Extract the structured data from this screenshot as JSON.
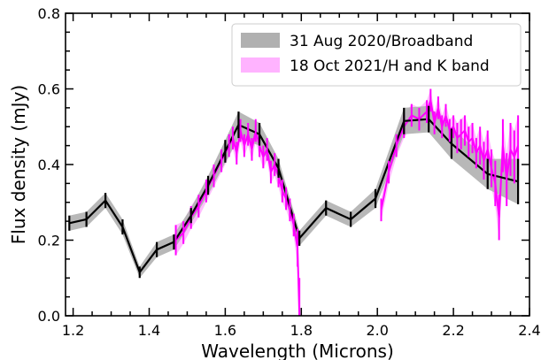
{
  "chart_data": {
    "type": "line",
    "title": "",
    "xlabel": "Wavelength (Microns)",
    "ylabel": "Flux density (mJy)",
    "xlim": [
      1.18,
      2.4
    ],
    "ylim": [
      0.0,
      0.8
    ],
    "x_ticks": [
      1.2,
      1.4,
      1.6,
      1.8,
      2.0,
      2.2,
      2.4
    ],
    "x_tick_labels": [
      "1.2",
      "1.4",
      "1.6",
      "1.8",
      "2.0",
      "2.2",
      "2.4"
    ],
    "y_ticks": [
      0.0,
      0.2,
      0.4,
      0.6,
      0.8
    ],
    "y_tick_labels": [
      "0.0",
      "0.2",
      "0.4",
      "0.6",
      "0.8"
    ],
    "grid": false,
    "legend_position": "top-right",
    "series": [
      {
        "name": "31 Aug 2020/Broadband",
        "color": "#000000",
        "band_color": "#b0b0b0",
        "x": [
          1.19,
          1.235,
          1.285,
          1.33,
          1.375,
          1.42,
          1.465,
          1.51,
          1.555,
          1.6,
          1.635,
          1.69,
          1.74,
          1.795,
          1.865,
          1.93,
          1.995,
          2.07,
          2.135,
          2.195,
          2.29,
          2.37
        ],
        "y": [
          0.245,
          0.255,
          0.305,
          0.235,
          0.115,
          0.175,
          0.195,
          0.265,
          0.345,
          0.435,
          0.505,
          0.48,
          0.39,
          0.205,
          0.285,
          0.255,
          0.31,
          0.515,
          0.52,
          0.455,
          0.375,
          0.355
        ],
        "err": [
          0.02,
          0.02,
          0.02,
          0.02,
          0.015,
          0.02,
          0.02,
          0.02,
          0.025,
          0.03,
          0.035,
          0.03,
          0.025,
          0.02,
          0.02,
          0.02,
          0.025,
          0.035,
          0.035,
          0.04,
          0.04,
          0.06
        ]
      },
      {
        "name": "18 Oct 2021/H and K band",
        "color": "#ff00ff",
        "band_color": "#ffb3ff",
        "segments": [
          {
            "x": [
              1.47,
              1.49,
              1.51,
              1.53,
              1.55,
              1.57,
              1.59,
              1.61,
              1.62,
              1.63,
              1.64,
              1.65,
              1.66,
              1.67,
              1.68,
              1.69,
              1.7,
              1.71,
              1.72,
              1.73,
              1.74,
              1.75,
              1.76,
              1.77,
              1.78,
              1.79,
              1.795
            ],
            "y": [
              0.2,
              0.22,
              0.26,
              0.29,
              0.33,
              0.37,
              0.41,
              0.45,
              0.47,
              0.43,
              0.49,
              0.45,
              0.48,
              0.44,
              0.49,
              0.45,
              0.42,
              0.44,
              0.38,
              0.4,
              0.37,
              0.33,
              0.31,
              0.28,
              0.24,
              0.18,
              0.0
            ],
            "err": [
              0.04,
              0.03,
              0.03,
              0.03,
              0.03,
              0.03,
              0.03,
              0.03,
              0.03,
              0.03,
              0.03,
              0.03,
              0.03,
              0.03,
              0.03,
              0.03,
              0.03,
              0.03,
              0.03,
              0.03,
              0.03,
              0.03,
              0.03,
              0.03,
              0.03,
              0.05,
              0.1
            ]
          },
          {
            "x": [
              2.01,
              2.03,
              2.05,
              2.07,
              2.09,
              2.11,
              2.13,
              2.14,
              2.15,
              2.16,
              2.17,
              2.18,
              2.19,
              2.2,
              2.21,
              2.22,
              2.23,
              2.24,
              2.25,
              2.26,
              2.27,
              2.28,
              2.29,
              2.3,
              2.31,
              2.32,
              2.33,
              2.34,
              2.35,
              2.36,
              2.37
            ],
            "y": [
              0.28,
              0.38,
              0.45,
              0.5,
              0.53,
              0.52,
              0.54,
              0.57,
              0.51,
              0.55,
              0.5,
              0.53,
              0.49,
              0.5,
              0.47,
              0.48,
              0.49,
              0.46,
              0.47,
              0.43,
              0.45,
              0.41,
              0.44,
              0.39,
              0.35,
              0.26,
              0.45,
              0.36,
              0.44,
              0.42,
              0.45
            ],
            "err": [
              0.03,
              0.03,
              0.03,
              0.03,
              0.03,
              0.03,
              0.03,
              0.03,
              0.03,
              0.03,
              0.03,
              0.03,
              0.03,
              0.03,
              0.04,
              0.04,
              0.04,
              0.04,
              0.04,
              0.04,
              0.05,
              0.05,
              0.05,
              0.05,
              0.06,
              0.06,
              0.07,
              0.07,
              0.07,
              0.07,
              0.08
            ]
          }
        ]
      }
    ]
  }
}
